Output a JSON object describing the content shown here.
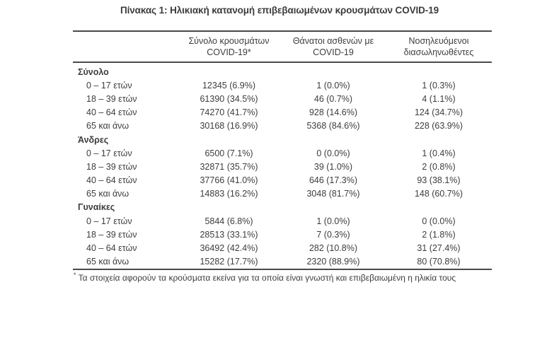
{
  "title": "Πίνακας 1: Ηλικιακή κατανομή επιβεβαιωμένων κρουσμάτων COVID-19",
  "table": {
    "column_headers": [
      {
        "line1": "Σύνολο κρουσμάτων",
        "line2": "COVID-19*"
      },
      {
        "line1": "Θάνατοι ασθενών με",
        "line2": "COVID-19"
      },
      {
        "line1": "Νοσηλευόμενοι",
        "line2": "διασωληνωθέντες"
      }
    ],
    "sections": [
      {
        "label": "Σύνολο",
        "rows": [
          {
            "label": "0 – 17 ετών",
            "cases": "12345 (6.9%)",
            "deaths": "1 (0.0%)",
            "intubated": "1 (0.3%)"
          },
          {
            "label": "18 – 39 ετών",
            "cases": "61390 (34.5%)",
            "deaths": "46 (0.7%)",
            "intubated": "4 (1.1%)"
          },
          {
            "label": "40 – 64 ετών",
            "cases": "74270 (41.7%)",
            "deaths": "928 (14.6%)",
            "intubated": "124 (34.7%)"
          },
          {
            "label": "65 και άνω",
            "cases": "30168 (16.9%)",
            "deaths": "5368 (84.6%)",
            "intubated": "228 (63.9%)"
          }
        ]
      },
      {
        "label": "Άνδρες",
        "rows": [
          {
            "label": "0 – 17 ετών",
            "cases": "6500 (7.1%)",
            "deaths": "0 (0.0%)",
            "intubated": "1 (0.4%)"
          },
          {
            "label": "18 – 39 ετών",
            "cases": "32871 (35.7%)",
            "deaths": "39 (1.0%)",
            "intubated": "2 (0.8%)"
          },
          {
            "label": "40 – 64 ετών",
            "cases": "37766 (41.0%)",
            "deaths": "646 (17.3%)",
            "intubated": "93 (38.1%)"
          },
          {
            "label": "65 και άνω",
            "cases": "14883 (16.2%)",
            "deaths": "3048 (81.7%)",
            "intubated": "148 (60.7%)"
          }
        ]
      },
      {
        "label": "Γυναίκες",
        "rows": [
          {
            "label": "0 – 17 ετών",
            "cases": "5844 (6.8%)",
            "deaths": "1 (0.0%)",
            "intubated": "0 (0.0%)"
          },
          {
            "label": "18 – 39 ετών",
            "cases": "28513 (33.1%)",
            "deaths": "7 (0.3%)",
            "intubated": "2 (1.8%)"
          },
          {
            "label": "40 – 64 ετών",
            "cases": "36492 (42.4%)",
            "deaths": "282 (10.8%)",
            "intubated": "31 (27.4%)"
          },
          {
            "label": "65 και άνω",
            "cases": "15282 (17.7%)",
            "deaths": "2320 (88.9%)",
            "intubated": "80 (70.8%)"
          }
        ]
      }
    ]
  },
  "footnote": {
    "marker": "*",
    "text": " Τα στοιχεία αφορούν τα κρούσματα εκείνα για τα οποία είναι γνωστή και επιβεβαιωμένη η ηλικία τους"
  },
  "colors": {
    "background": "#ffffff",
    "text": "#3d3d3d",
    "rule": "#4a4a4a"
  }
}
